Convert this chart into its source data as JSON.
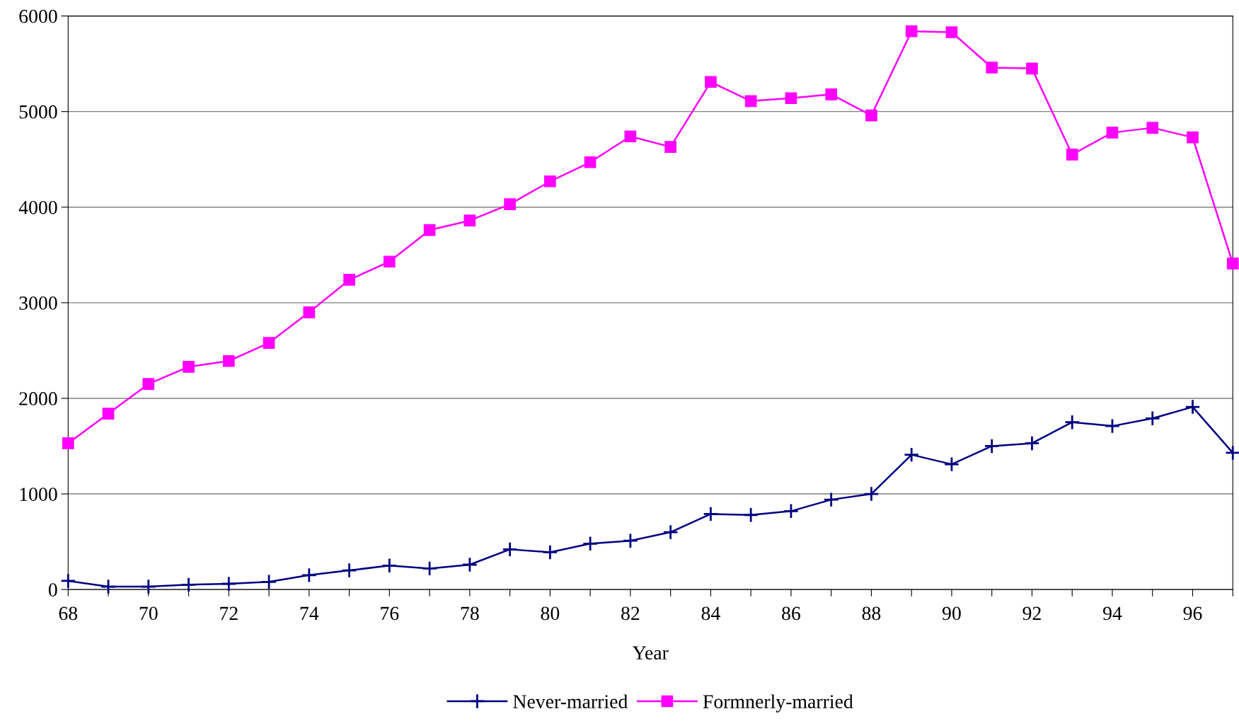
{
  "chart_data": {
    "type": "line",
    "xlabel": "Year",
    "x": [
      68,
      69,
      70,
      71,
      72,
      73,
      74,
      75,
      76,
      77,
      78,
      79,
      80,
      81,
      82,
      83,
      84,
      85,
      86,
      87,
      88,
      89,
      90,
      91,
      92,
      93,
      94,
      95,
      96,
      97
    ],
    "series": [
      {
        "name": "Never-married",
        "color": "#000080",
        "marker": "cross",
        "values": [
          90,
          30,
          30,
          50,
          60,
          80,
          150,
          200,
          250,
          220,
          260,
          420,
          390,
          480,
          510,
          600,
          790,
          780,
          820,
          940,
          1000,
          1410,
          1310,
          1500,
          1530,
          1750,
          1710,
          1790,
          1910,
          1430
        ]
      },
      {
        "name": "Formnerly-married",
        "color": "#ff00ff",
        "marker": "square",
        "values": [
          1530,
          1840,
          2150,
          2330,
          2390,
          2580,
          2900,
          3240,
          3430,
          3760,
          3860,
          4030,
          4270,
          4470,
          4740,
          4630,
          5310,
          5110,
          5140,
          5180,
          4960,
          5840,
          5830,
          5460,
          5450,
          4550,
          4780,
          4830,
          4730,
          3410
        ]
      }
    ],
    "xlim": [
      68,
      97
    ],
    "xticks": [
      68,
      {
        "value": 69,
        "label": null
      },
      70,
      {
        "value": 71,
        "label": null
      },
      72,
      {
        "value": 73,
        "label": null
      },
      74,
      {
        "value": 75,
        "label": null
      },
      76,
      {
        "value": 77,
        "label": null
      },
      78,
      {
        "value": 79,
        "label": null
      },
      80,
      {
        "value": 81,
        "label": null
      },
      82,
      {
        "value": 83,
        "label": null
      },
      84,
      {
        "value": 85,
        "label": null
      },
      86,
      {
        "value": 87,
        "label": null
      },
      88,
      {
        "value": 89,
        "label": null
      },
      90,
      {
        "value": 91,
        "label": null
      },
      92,
      {
        "value": 93,
        "label": null
      },
      94,
      {
        "value": 95,
        "label": null
      },
      96,
      {
        "value": 97,
        "label": null
      }
    ],
    "ylim": [
      0,
      6000
    ],
    "yticks": [
      0,
      1000,
      2000,
      3000,
      4000,
      5000,
      6000
    ],
    "grid": "y",
    "legend": "bottom",
    "line_style": "solid"
  }
}
